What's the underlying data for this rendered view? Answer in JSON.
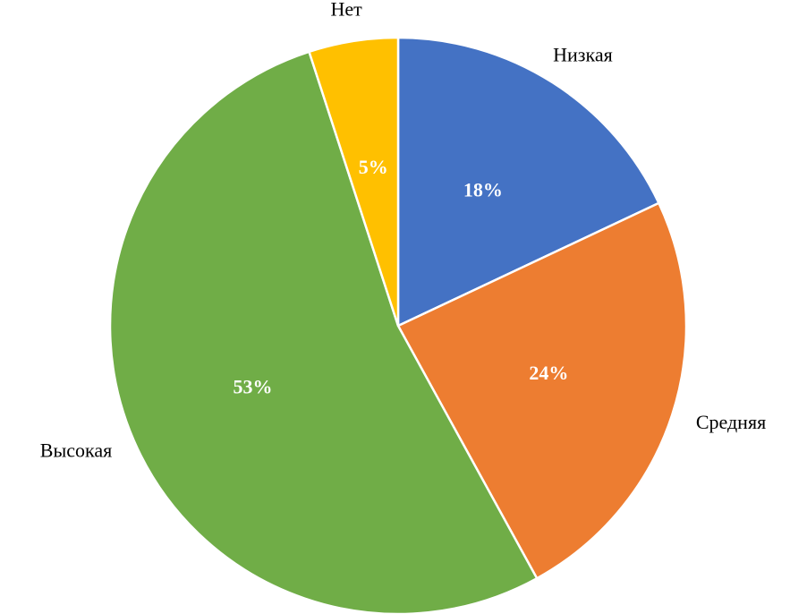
{
  "chart_data": {
    "type": "pie",
    "categories": [
      "Низкая",
      "Средняя",
      "Высокая",
      "Нет"
    ],
    "values": [
      18,
      24,
      53,
      5
    ],
    "value_labels": [
      "18%",
      "24%",
      "53%",
      "5%"
    ],
    "colors": [
      "#4472c4",
      "#ed7d31",
      "#70ad47",
      "#ffc000"
    ]
  }
}
